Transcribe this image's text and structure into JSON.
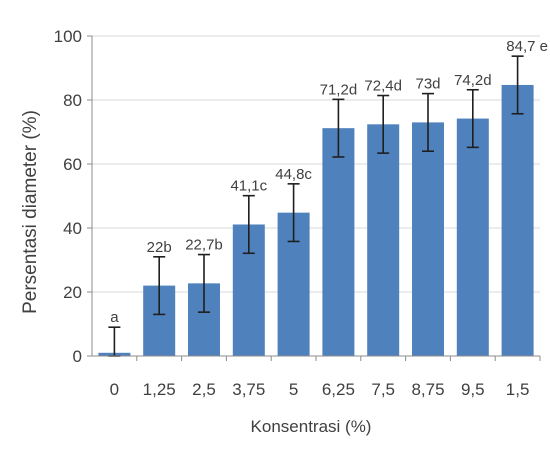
{
  "chart_data": {
    "type": "bar",
    "title": "",
    "xlabel": "Konsentrasi (%)",
    "ylabel": "Persentasi diameter (%)",
    "ylim": [
      0,
      100
    ],
    "yticks": [
      "0",
      "20",
      "40",
      "60",
      "80",
      "100"
    ],
    "grid": true,
    "legend": "none",
    "categories": [
      "0",
      "1,25",
      "2,5",
      "3,75",
      "5",
      "6,25",
      "7,5",
      "8,75",
      "9,5",
      "1,5"
    ],
    "series": [
      {
        "values": [
          1,
          22,
          22.7,
          41.1,
          44.8,
          71.2,
          72.4,
          73,
          74.2,
          84.7
        ],
        "error": [
          8,
          9,
          9,
          9,
          9,
          9,
          9,
          9,
          9,
          9
        ],
        "labels": [
          "a",
          "22b",
          "22,7b",
          "41,1c",
          "44,8c",
          "71,2d",
          "72,4d",
          "73d",
          "74,2d",
          "84,7 e"
        ]
      }
    ],
    "colors": {
      "bar": "#4f81bd",
      "error_bar": "#1f1f1f",
      "grid": "#d9d9d9",
      "text": "#404040",
      "axis": "#8c8c8c"
    }
  }
}
